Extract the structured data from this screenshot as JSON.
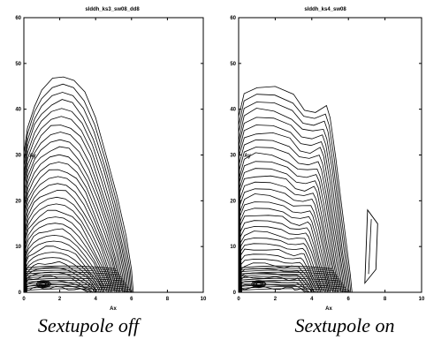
{
  "chart_data": [
    {
      "type": "contour",
      "title": "slddh_ks3_sw08_dd8",
      "xlabel": "Ax",
      "ylabel": "Ay",
      "xlim": [
        0,
        10
      ],
      "ylim": [
        0,
        60
      ],
      "xticks": [
        "0",
        "2",
        "4",
        "6",
        "8",
        "10"
      ],
      "yticks": [
        "0",
        "10",
        "20",
        "30",
        "40",
        "50",
        "60"
      ],
      "grid": false,
      "caption": "Sextupole off",
      "outer_boundary": [
        [
          0,
          0
        ],
        [
          0,
          30
        ],
        [
          0.2,
          36
        ],
        [
          0.6,
          41
        ],
        [
          1.0,
          44
        ],
        [
          1.6,
          46.5
        ],
        [
          2.2,
          47.3
        ],
        [
          2.8,
          46.5
        ],
        [
          3.4,
          43.5
        ],
        [
          4.0,
          38
        ],
        [
          4.6,
          30
        ],
        [
          5.2,
          21
        ],
        [
          5.7,
          12
        ],
        [
          6.0,
          5
        ],
        [
          6.1,
          0
        ]
      ],
      "contour_levels": 34
    },
    {
      "type": "contour",
      "title": "slddh_ks4_sw08",
      "xlabel": "Ax",
      "ylabel": "Ay",
      "xlim": [
        0,
        10
      ],
      "ylim": [
        0,
        60
      ],
      "xticks": [
        "0",
        "2",
        "4",
        "6",
        "8",
        "10"
      ],
      "yticks": [
        "0",
        "10",
        "20",
        "30",
        "40",
        "50",
        "60"
      ],
      "grid": false,
      "caption": "Sextupole on",
      "outer_boundary": [
        [
          0,
          0
        ],
        [
          0,
          38
        ],
        [
          0.3,
          43.5
        ],
        [
          1.0,
          45
        ],
        [
          2.0,
          44.8
        ],
        [
          3.0,
          43
        ],
        [
          3.6,
          40
        ],
        [
          4.2,
          39.5
        ],
        [
          4.8,
          40.5
        ],
        [
          5.0,
          38
        ],
        [
          5.3,
          30
        ],
        [
          5.6,
          20
        ],
        [
          5.9,
          10
        ],
        [
          6.1,
          4
        ],
        [
          6.2,
          0
        ]
      ],
      "contour_levels": 34,
      "islands": [
        {
          "x": [
            6.9,
            7.6
          ],
          "y": [
            2,
            18
          ]
        }
      ]
    }
  ]
}
